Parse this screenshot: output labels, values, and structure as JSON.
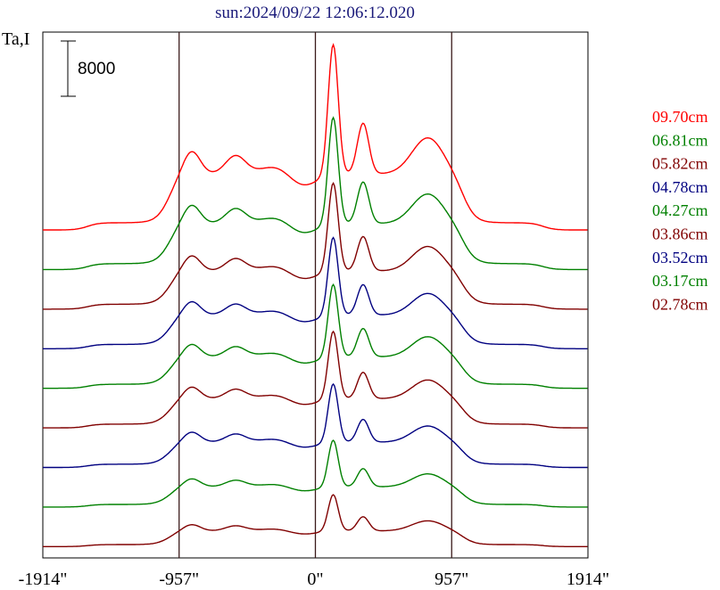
{
  "chart_data": {
    "type": "line",
    "title": "sun:2024/09/22 12:06:12.020",
    "ylabel": "Ta,I",
    "xlabel": "",
    "scale_bar_label": "8000",
    "scale_bar_value": 8000,
    "xlim": [
      -1914,
      1914
    ],
    "x_ticks": [
      {
        "value": -1914,
        "label": "-1914\""
      },
      {
        "value": -957,
        "label": "-957\""
      },
      {
        "value": 0,
        "label": "0\""
      },
      {
        "value": 957,
        "label": "957\""
      },
      {
        "value": 1914,
        "label": "1914\""
      }
    ],
    "vertical_lines": [
      -957,
      0,
      957
    ],
    "grid": false,
    "legend_position": "right",
    "series": [
      {
        "name": "09.70cm",
        "color": "#ff0000",
        "baseline": 54000,
        "amplitude": 1.0
      },
      {
        "name": "06.81cm",
        "color": "#008000",
        "baseline": 47000,
        "amplitude": 0.82
      },
      {
        "name": "05.82cm",
        "color": "#800000",
        "baseline": 40000,
        "amplitude": 0.68
      },
      {
        "name": "04.78cm",
        "color": "#000080",
        "baseline": 33000,
        "amplitude": 0.6
      },
      {
        "name": "04.27cm",
        "color": "#008000",
        "baseline": 26000,
        "amplitude": 0.56
      },
      {
        "name": "03.86cm",
        "color": "#800000",
        "baseline": 19000,
        "amplitude": 0.52
      },
      {
        "name": "03.52cm",
        "color": "#000080",
        "baseline": 12000,
        "amplitude": 0.45
      },
      {
        "name": "03.17cm",
        "color": "#008000",
        "baseline": 5000,
        "amplitude": 0.36
      },
      {
        "name": "02.78cm",
        "color": "#800000",
        "baseline": -2000,
        "amplitude": 0.28
      }
    ],
    "ylim": [
      -4000,
      89000
    ]
  }
}
